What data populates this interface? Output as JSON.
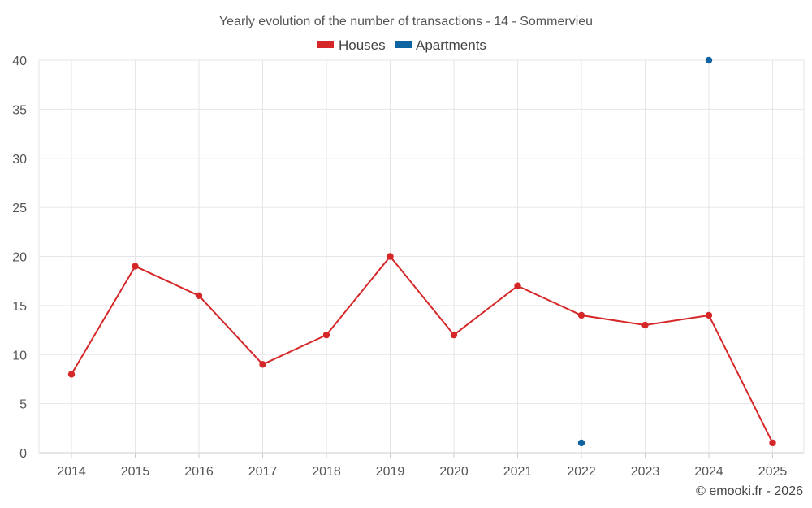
{
  "chart_data": {
    "type": "line",
    "title": "Yearly evolution of the number of transactions - 14 - Sommervieu",
    "categories": [
      "2014",
      "2015",
      "2016",
      "2017",
      "2018",
      "2019",
      "2020",
      "2021",
      "2022",
      "2023",
      "2024",
      "2025"
    ],
    "series": [
      {
        "name": "Houses",
        "color": "#d62728",
        "values": [
          8,
          19,
          16,
          9,
          12,
          20,
          12,
          17,
          14,
          13,
          14,
          1
        ]
      },
      {
        "name": "Apartments",
        "color": "#0e64a0",
        "values": [
          null,
          null,
          null,
          null,
          null,
          null,
          null,
          null,
          1,
          null,
          40,
          null
        ]
      }
    ],
    "ylim": [
      0,
      40
    ],
    "yticks": [
      0,
      5,
      10,
      15,
      20,
      25,
      30,
      35,
      40
    ],
    "grid": true,
    "legend_position": "top-center",
    "xlabel": "",
    "ylabel": ""
  },
  "credit": "© emooki.fr - 2026"
}
